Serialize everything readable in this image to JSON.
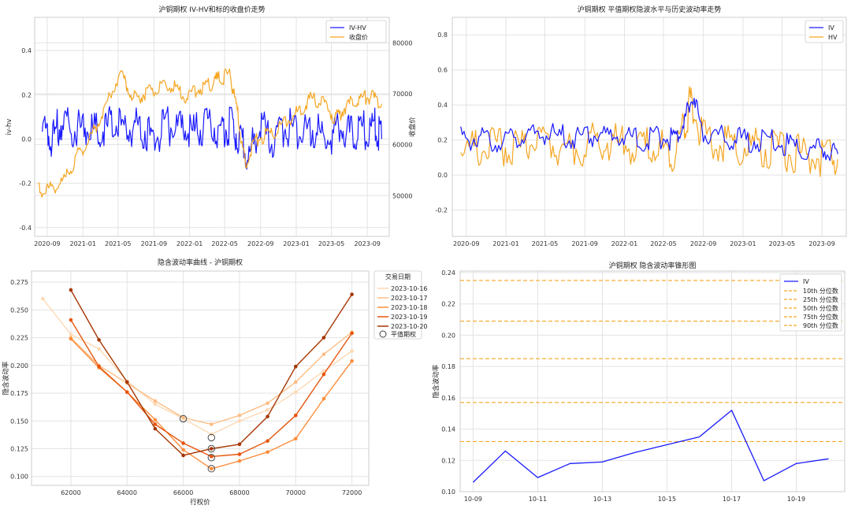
{
  "chart_data": [
    {
      "type": "line",
      "title": "沪铜期权 IV-HV和标的收盘价走势",
      "ylabel": "iv-hv",
      "y2label": "收盘价",
      "ylim": [
        -0.44,
        0.55
      ],
      "y2lim": [
        42000,
        85000
      ],
      "yticks": [
        -0.4,
        -0.2,
        0.0,
        0.2,
        0.4
      ],
      "y2ticks": [
        50000,
        60000,
        70000,
        80000
      ],
      "xlim": [
        "2020-07-20",
        "2023-11-15"
      ],
      "xticks": [
        "2020-09",
        "2021-01",
        "2021-05",
        "2021-09",
        "2022-01",
        "2022-05",
        "2022-09",
        "2023-01",
        "2023-05",
        "2023-09"
      ],
      "grid": true,
      "legend_position": "top-right",
      "series": [
        {
          "name": "IV-HV",
          "color": "#1a1aff",
          "axis": "left",
          "x": [
            "2020-08-15",
            "2020-09-15",
            "2020-10-20",
            "2020-12-01",
            "2021-01-15",
            "2021-03-01",
            "2021-04-15",
            "2021-06-01",
            "2021-07-15",
            "2021-09-01",
            "2021-10-15",
            "2021-12-01",
            "2022-01-15",
            "2022-03-01",
            "2022-04-15",
            "2022-05-20",
            "2022-06-20",
            "2022-07-20",
            "2022-09-01",
            "2022-10-15",
            "2022-12-01",
            "2023-01-15",
            "2023-03-01",
            "2023-04-15",
            "2023-06-01",
            "2023-07-15",
            "2023-08-20",
            "2023-09-25",
            "2023-10-20"
          ],
          "values": [
            0.05,
            0.0,
            0.08,
            0.04,
            0.06,
            0.02,
            0.08,
            0.04,
            0.06,
            0.0,
            0.06,
            0.05,
            0.03,
            0.07,
            0.04,
            0.06,
            0.02,
            -0.08,
            0.05,
            -0.02,
            0.06,
            0.03,
            0.05,
            0.0,
            0.05,
            0.02,
            0.04,
            0.06,
            0.0
          ]
        },
        {
          "name": "收盘价",
          "color": "#f5a623",
          "axis": "right",
          "x": [
            "2020-08-01",
            "2020-09-15",
            "2020-11-01",
            "2020-12-15",
            "2021-02-01",
            "2021-03-15",
            "2021-05-10",
            "2021-06-20",
            "2021-08-01",
            "2021-09-15",
            "2021-11-01",
            "2021-12-15",
            "2022-02-01",
            "2022-03-15",
            "2022-04-15",
            "2022-05-20",
            "2022-06-15",
            "2022-07-10",
            "2022-08-15",
            "2022-10-01",
            "2022-11-15",
            "2023-01-01",
            "2023-02-15",
            "2023-04-01",
            "2023-05-15",
            "2023-06-20",
            "2023-08-01",
            "2023-09-10",
            "2023-10-20"
          ],
          "values": [
            51000,
            51500,
            53000,
            58000,
            62000,
            67000,
            74500,
            69000,
            70000,
            71000,
            71500,
            69500,
            71000,
            72000,
            73000,
            73800,
            66000,
            56000,
            61000,
            62000,
            64000,
            66000,
            69000,
            68500,
            65000,
            67500,
            69000,
            69500,
            68000
          ]
        }
      ]
    },
    {
      "type": "line",
      "title": "沪铜期权 平值期权隐波水平与历史波动率走势",
      "ylim": [
        -0.35,
        0.9
      ],
      "yticks": [
        -0.2,
        0.0,
        0.2,
        0.4,
        0.6,
        0.8
      ],
      "xlim": [
        "2020-07-20",
        "2023-11-15"
      ],
      "xticks": [
        "2020-09",
        "2021-01",
        "2021-05",
        "2021-09",
        "2022-01",
        "2022-05",
        "2022-09",
        "2023-01",
        "2023-05",
        "2023-09"
      ],
      "grid": true,
      "legend_position": "top-right",
      "series": [
        {
          "name": "IV",
          "color": "#1a1aff",
          "x": [
            "2020-08-15",
            "2020-10-15",
            "2020-12-15",
            "2021-02-15",
            "2021-04-15",
            "2021-06-15",
            "2021-08-15",
            "2021-10-15",
            "2021-12-15",
            "2022-02-15",
            "2022-04-15",
            "2022-06-01",
            "2022-07-05",
            "2022-07-25",
            "2022-09-01",
            "2022-11-01",
            "2023-01-01",
            "2023-03-01",
            "2023-05-01",
            "2023-07-01",
            "2023-09-01",
            "2023-10-20"
          ],
          "values": [
            0.22,
            0.2,
            0.2,
            0.22,
            0.23,
            0.22,
            0.21,
            0.23,
            0.22,
            0.2,
            0.22,
            0.2,
            0.3,
            0.45,
            0.25,
            0.22,
            0.2,
            0.2,
            0.18,
            0.15,
            0.14,
            0.12
          ]
        },
        {
          "name": "HV",
          "color": "#f5a623",
          "x": [
            "2020-08-15",
            "2020-10-15",
            "2020-12-15",
            "2021-02-15",
            "2021-04-15",
            "2021-06-15",
            "2021-08-15",
            "2021-10-15",
            "2021-12-15",
            "2022-02-15",
            "2022-04-15",
            "2022-06-01",
            "2022-07-05",
            "2022-07-25",
            "2022-09-01",
            "2022-11-01",
            "2023-01-01",
            "2023-03-01",
            "2023-05-01",
            "2023-07-01",
            "2023-09-01",
            "2023-10-20"
          ],
          "values": [
            0.16,
            0.14,
            0.17,
            0.15,
            0.2,
            0.17,
            0.15,
            0.2,
            0.18,
            0.16,
            0.15,
            0.13,
            0.3,
            0.42,
            0.22,
            0.17,
            0.16,
            0.15,
            0.14,
            0.12,
            0.1,
            0.09
          ]
        }
      ]
    },
    {
      "type": "line",
      "title": "隐含波动率曲线 - 沪铜期权",
      "xlabel": "行权价",
      "ylabel": "隐含波动率",
      "xlim": [
        60600,
        72600
      ],
      "ylim": [
        0.092,
        0.285
      ],
      "xticks": [
        62000,
        64000,
        66000,
        68000,
        70000,
        72000
      ],
      "yticks": [
        0.1,
        0.125,
        0.15,
        0.175,
        0.2,
        0.225,
        0.25,
        0.275
      ],
      "legend_title": "交易日期",
      "legend_position": "outside-right",
      "atm_label": "平值期权",
      "grid": true,
      "series": [
        {
          "name": "2023-10-16",
          "color": "#fdd9b5",
          "x": [
            61000,
            62000,
            63000,
            64000,
            65000,
            66000,
            67000,
            68000,
            69000,
            70000,
            71000,
            72000
          ],
          "values": [
            0.26,
            0.228,
            0.215,
            0.186,
            0.165,
            0.152,
            0.138,
            0.15,
            0.16,
            0.176,
            0.195,
            0.213
          ]
        },
        {
          "name": "2023-10-17",
          "color": "#fdbe85",
          "x": [
            62000,
            63000,
            64000,
            65000,
            66000,
            67000,
            68000,
            69000,
            70000,
            71000,
            72000
          ],
          "values": [
            0.225,
            0.2,
            0.184,
            0.168,
            0.153,
            0.147,
            0.155,
            0.166,
            0.185,
            0.21,
            0.23
          ]
        },
        {
          "name": "2023-10-18",
          "color": "#fd8d3c",
          "x": [
            62000,
            63000,
            64000,
            65000,
            66000,
            67000,
            68000,
            69000,
            70000,
            71000,
            72000
          ],
          "values": [
            0.224,
            0.198,
            0.176,
            0.151,
            0.124,
            0.107,
            0.114,
            0.122,
            0.134,
            0.17,
            0.204
          ]
        },
        {
          "name": "2023-10-19",
          "color": "#e6550d",
          "x": [
            62000,
            63000,
            64000,
            65000,
            66000,
            67000,
            68000,
            69000,
            70000,
            71000,
            72000
          ],
          "values": [
            0.241,
            0.199,
            0.176,
            0.147,
            0.13,
            0.118,
            0.12,
            0.132,
            0.155,
            0.192,
            0.229
          ]
        },
        {
          "name": "2023-10-20",
          "color": "#a63603",
          "x": [
            62000,
            63000,
            64000,
            65000,
            66000,
            67000,
            68000,
            69000,
            70000,
            71000,
            72000
          ],
          "values": [
            0.268,
            0.223,
            0.185,
            0.143,
            0.119,
            0.125,
            0.129,
            0.154,
            0.199,
            0.225,
            0.264
          ]
        }
      ],
      "atm_points": [
        {
          "x": 66000,
          "y": 0.152
        },
        {
          "x": 67000,
          "y": 0.135
        },
        {
          "x": 67000,
          "y": 0.125
        },
        {
          "x": 67000,
          "y": 0.117
        },
        {
          "x": 67000,
          "y": 0.107
        }
      ]
    },
    {
      "type": "line",
      "title": "沪铜期权 隐含波动率锥形图",
      "ylabel": "隐含波动率",
      "xlim": [
        0,
        11.5
      ],
      "ylim": [
        0.1,
        0.241
      ],
      "yticks": [
        0.1,
        0.12,
        0.14,
        0.16,
        0.18,
        0.2,
        0.22,
        0.24
      ],
      "xtick_positions": [
        0,
        2,
        4,
        6,
        8,
        10
      ],
      "xtick_labels": [
        "10-09",
        "10-11",
        "10-13",
        "10-15",
        "10-17",
        "10-19"
      ],
      "grid": true,
      "legend_position": "top-right",
      "series": [
        {
          "name": "IV",
          "color": "#1a1aff",
          "x": [
            0,
            1,
            2,
            3,
            4,
            5,
            6,
            7,
            8,
            9,
            10,
            11
          ],
          "values": [
            0.106,
            0.126,
            0.109,
            0.118,
            0.119,
            0.125,
            0.13,
            0.135,
            0.152,
            0.107,
            0.118,
            0.121
          ]
        }
      ],
      "percentiles": [
        {
          "name": "10th 分位数",
          "value": 0.132,
          "color": "#f5a623"
        },
        {
          "name": "25th 分位数",
          "value": 0.157,
          "color": "#f5a623"
        },
        {
          "name": "50th 分位数",
          "value": 0.185,
          "color": "#f5a623"
        },
        {
          "name": "75th 分位数",
          "value": 0.209,
          "color": "#f5a623"
        },
        {
          "name": "90th 分位数",
          "value": 0.235,
          "color": "#f5a623"
        }
      ]
    }
  ]
}
